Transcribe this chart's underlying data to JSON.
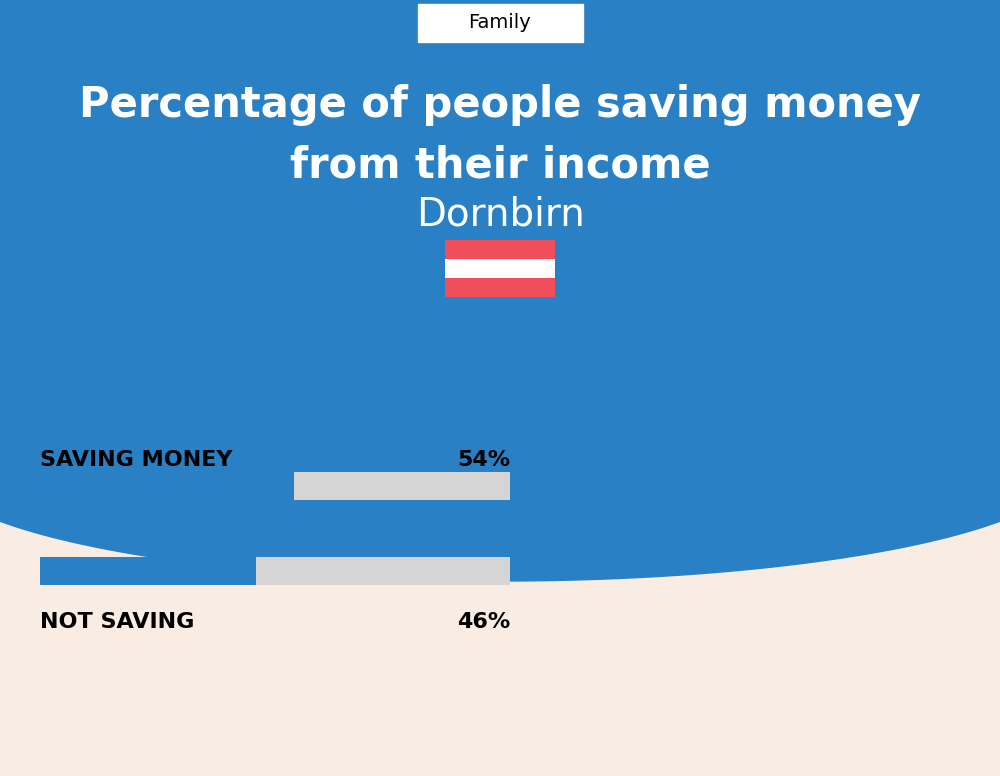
{
  "title_line1": "Percentage of people saving money",
  "title_line2": "from their income",
  "subtitle": "Dornbirn",
  "category_label": "Family",
  "bg_top_color": "#2980c4",
  "bg_bottom_color": "#f9ede3",
  "bar_blue": "#2980c4",
  "bar_gray": "#d5d5d5",
  "saving_label": "SAVING MONEY",
  "saving_value": 54,
  "saving_pct_text": "54%",
  "not_saving_label": "NOT SAVING",
  "not_saving_value": 46,
  "not_saving_pct_text": "46%",
  "label_fontsize": 16,
  "pct_fontsize": 16,
  "title_fontsize": 30,
  "subtitle_fontsize": 28,
  "category_fontsize": 14,
  "flag_red": "#f04e5a",
  "flag_white": "#ffffff"
}
